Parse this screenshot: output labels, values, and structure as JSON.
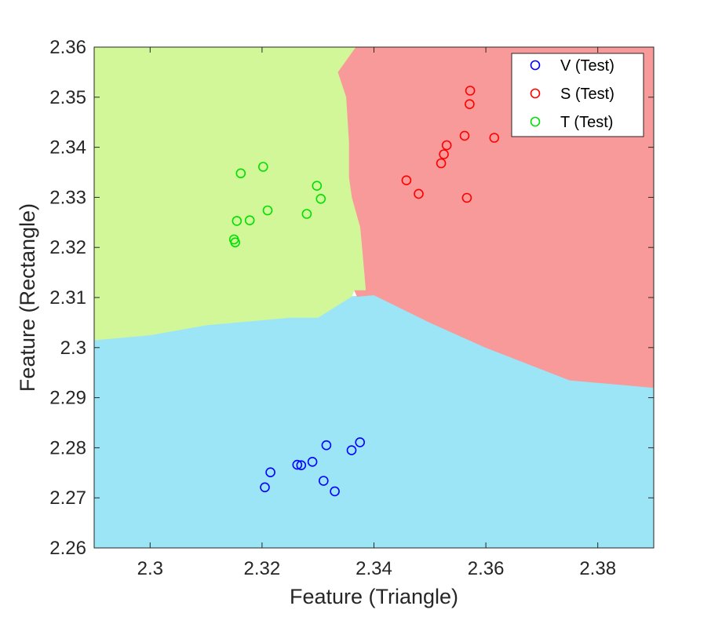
{
  "chart_data": {
    "type": "scatter",
    "title": "",
    "xlabel": "Feature (Triangle)",
    "ylabel": "Feature (Rectangle)",
    "xlim": [
      2.29,
      2.39
    ],
    "ylim": [
      2.26,
      2.36
    ],
    "x_ticks": [
      2.3,
      2.32,
      2.34,
      2.36,
      2.38
    ],
    "x_tick_labels": [
      "2.3",
      "2.32",
      "2.34",
      "2.36",
      "2.38"
    ],
    "y_ticks": [
      2.26,
      2.27,
      2.28,
      2.29,
      2.3,
      2.31,
      2.32,
      2.33,
      2.34,
      2.35,
      2.36
    ],
    "y_tick_labels": [
      "2.26",
      "2.27",
      "2.28",
      "2.29",
      "2.3",
      "2.31",
      "2.32",
      "2.33",
      "2.34",
      "2.35",
      "2.36"
    ],
    "grid": false,
    "legend_position": "top-right",
    "marker": "open-circle",
    "regions": [
      {
        "class": "V",
        "color": "#9be5f7",
        "boundary": [
          [
            2.29,
            2.26
          ],
          [
            2.39,
            2.26
          ],
          [
            2.39,
            2.292
          ],
          [
            2.375,
            2.2935
          ],
          [
            2.36,
            2.3
          ],
          [
            2.35,
            2.305
          ],
          [
            2.34,
            2.3105
          ],
          [
            2.336,
            2.3102
          ],
          [
            2.33,
            2.306
          ],
          [
            2.325,
            2.306
          ],
          [
            2.32,
            2.3055
          ],
          [
            2.31,
            2.3045
          ],
          [
            2.3,
            2.3025
          ],
          [
            2.29,
            2.3015
          ]
        ]
      },
      {
        "class": "S",
        "color": "#f99a9a",
        "boundary": [
          [
            2.3367,
            2.36
          ],
          [
            2.39,
            2.36
          ],
          [
            2.39,
            2.292
          ],
          [
            2.375,
            2.2935
          ],
          [
            2.36,
            2.3
          ],
          [
            2.35,
            2.305
          ],
          [
            2.34,
            2.3105
          ],
          [
            2.337,
            2.3102
          ],
          [
            2.3365,
            2.3115
          ],
          [
            2.3385,
            2.3115
          ],
          [
            2.338,
            2.318
          ],
          [
            2.3375,
            2.324
          ],
          [
            2.336,
            2.33
          ],
          [
            2.3355,
            2.334
          ],
          [
            2.3355,
            2.341
          ],
          [
            2.335,
            2.35
          ],
          [
            2.3335,
            2.355
          ]
        ]
      },
      {
        "class": "T",
        "color": "#d1f799",
        "boundary": [
          [
            2.29,
            2.3015
          ],
          [
            2.3,
            2.3025
          ],
          [
            2.31,
            2.3045
          ],
          [
            2.32,
            2.3055
          ],
          [
            2.325,
            2.306
          ],
          [
            2.33,
            2.306
          ],
          [
            2.336,
            2.3102
          ],
          [
            2.3365,
            2.3115
          ],
          [
            2.3385,
            2.3115
          ],
          [
            2.338,
            2.318
          ],
          [
            2.3375,
            2.324
          ],
          [
            2.336,
            2.33
          ],
          [
            2.3355,
            2.334
          ],
          [
            2.3355,
            2.341
          ],
          [
            2.335,
            2.35
          ],
          [
            2.3335,
            2.355
          ],
          [
            2.3367,
            2.36
          ],
          [
            2.29,
            2.36
          ]
        ]
      }
    ],
    "series": [
      {
        "name": "V (Test)",
        "color": "#0000ff",
        "points": [
          [
            2.3205,
            2.2721
          ],
          [
            2.3215,
            2.2751
          ],
          [
            2.3263,
            2.2766
          ],
          [
            2.327,
            2.2765
          ],
          [
            2.329,
            2.2772
          ],
          [
            2.331,
            2.2734
          ],
          [
            2.3315,
            2.2805
          ],
          [
            2.333,
            2.2713
          ],
          [
            2.336,
            2.2795
          ],
          [
            2.3375,
            2.2811
          ]
        ]
      },
      {
        "name": "S (Test)",
        "color": "#ff0000",
        "points": [
          [
            2.3458,
            2.3334
          ],
          [
            2.348,
            2.3307
          ],
          [
            2.352,
            2.3368
          ],
          [
            2.3525,
            2.3386
          ],
          [
            2.353,
            2.3404
          ],
          [
            2.3562,
            2.3423
          ],
          [
            2.3566,
            2.3299
          ],
          [
            2.3571,
            2.3486
          ],
          [
            2.3572,
            2.3513
          ],
          [
            2.3615,
            2.3419
          ]
        ]
      },
      {
        "name": "T (Test)",
        "color": "#00e000",
        "points": [
          [
            2.315,
            2.3216
          ],
          [
            2.3152,
            2.321
          ],
          [
            2.3155,
            2.3253
          ],
          [
            2.3162,
            2.3348
          ],
          [
            2.3178,
            2.3254
          ],
          [
            2.3202,
            2.3361
          ],
          [
            2.321,
            2.3274
          ],
          [
            2.328,
            2.3267
          ],
          [
            2.3298,
            2.3323
          ],
          [
            2.3305,
            2.3297
          ]
        ]
      }
    ]
  }
}
